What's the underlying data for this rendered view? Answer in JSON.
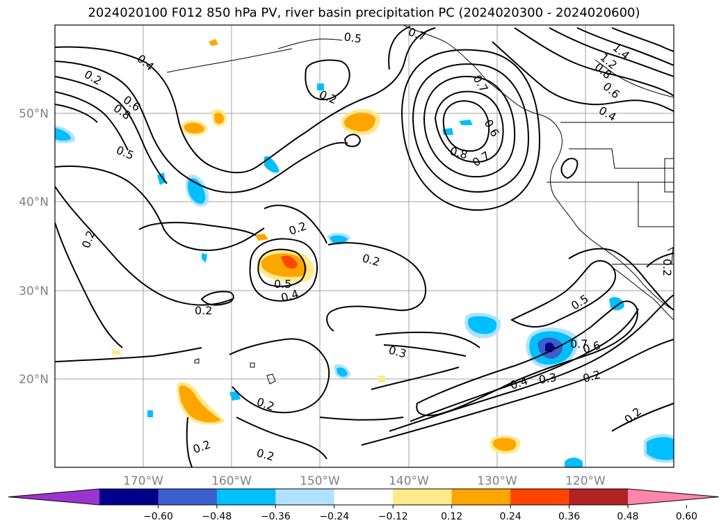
{
  "title": "2024020100 F012 850 hPa PV, river basin precipitation PC (2024020300 - 2024020600)",
  "lat_ticks": [
    "50°N",
    "40°N",
    "30°N",
    "20°N"
  ],
  "lon_ticks": [
    "170°W",
    "160°W",
    "150°W",
    "140°W",
    "130°W",
    "120°W"
  ],
  "colorbar": {
    "ticks": [
      "−0.60",
      "−0.48",
      "−0.36",
      "−0.24",
      "−0.12",
      "0.12",
      "0.24",
      "0.36",
      "0.48",
      "0.60"
    ],
    "colors": [
      "#9b35d0",
      "#00008b",
      "#3a5fcd",
      "#00bfff",
      "#b0e2ff",
      "#ffffff",
      "#ffe98a",
      "#ffa500",
      "#ff4500",
      "#b22222",
      "#ff85aa"
    ]
  },
  "contour_labels": [
    "0.4",
    "0.7",
    "0.6",
    "0.8",
    "0.5",
    "0.2",
    "0.5",
    "0.7",
    "0.6",
    "0.8",
    "0.7",
    "1.4",
    "1.2",
    "0.8",
    "0.6",
    "0.4",
    "0.2",
    "0.2",
    "0.2",
    "0.5",
    "0.4",
    "0.2",
    "0.3",
    "0.5",
    "0.7",
    "0.6",
    "0.4",
    "0.3",
    "0.2",
    "0.2",
    "0.2",
    "0.2",
    "0.2",
    "0.2",
    "0.2"
  ],
  "map": {
    "projection": "equirectangular",
    "lon_range": [
      -180,
      -110
    ],
    "lat_range": [
      10,
      60
    ],
    "gridlines": true,
    "field": "850 hPa PV",
    "shading": "river basin precipitation PC"
  }
}
